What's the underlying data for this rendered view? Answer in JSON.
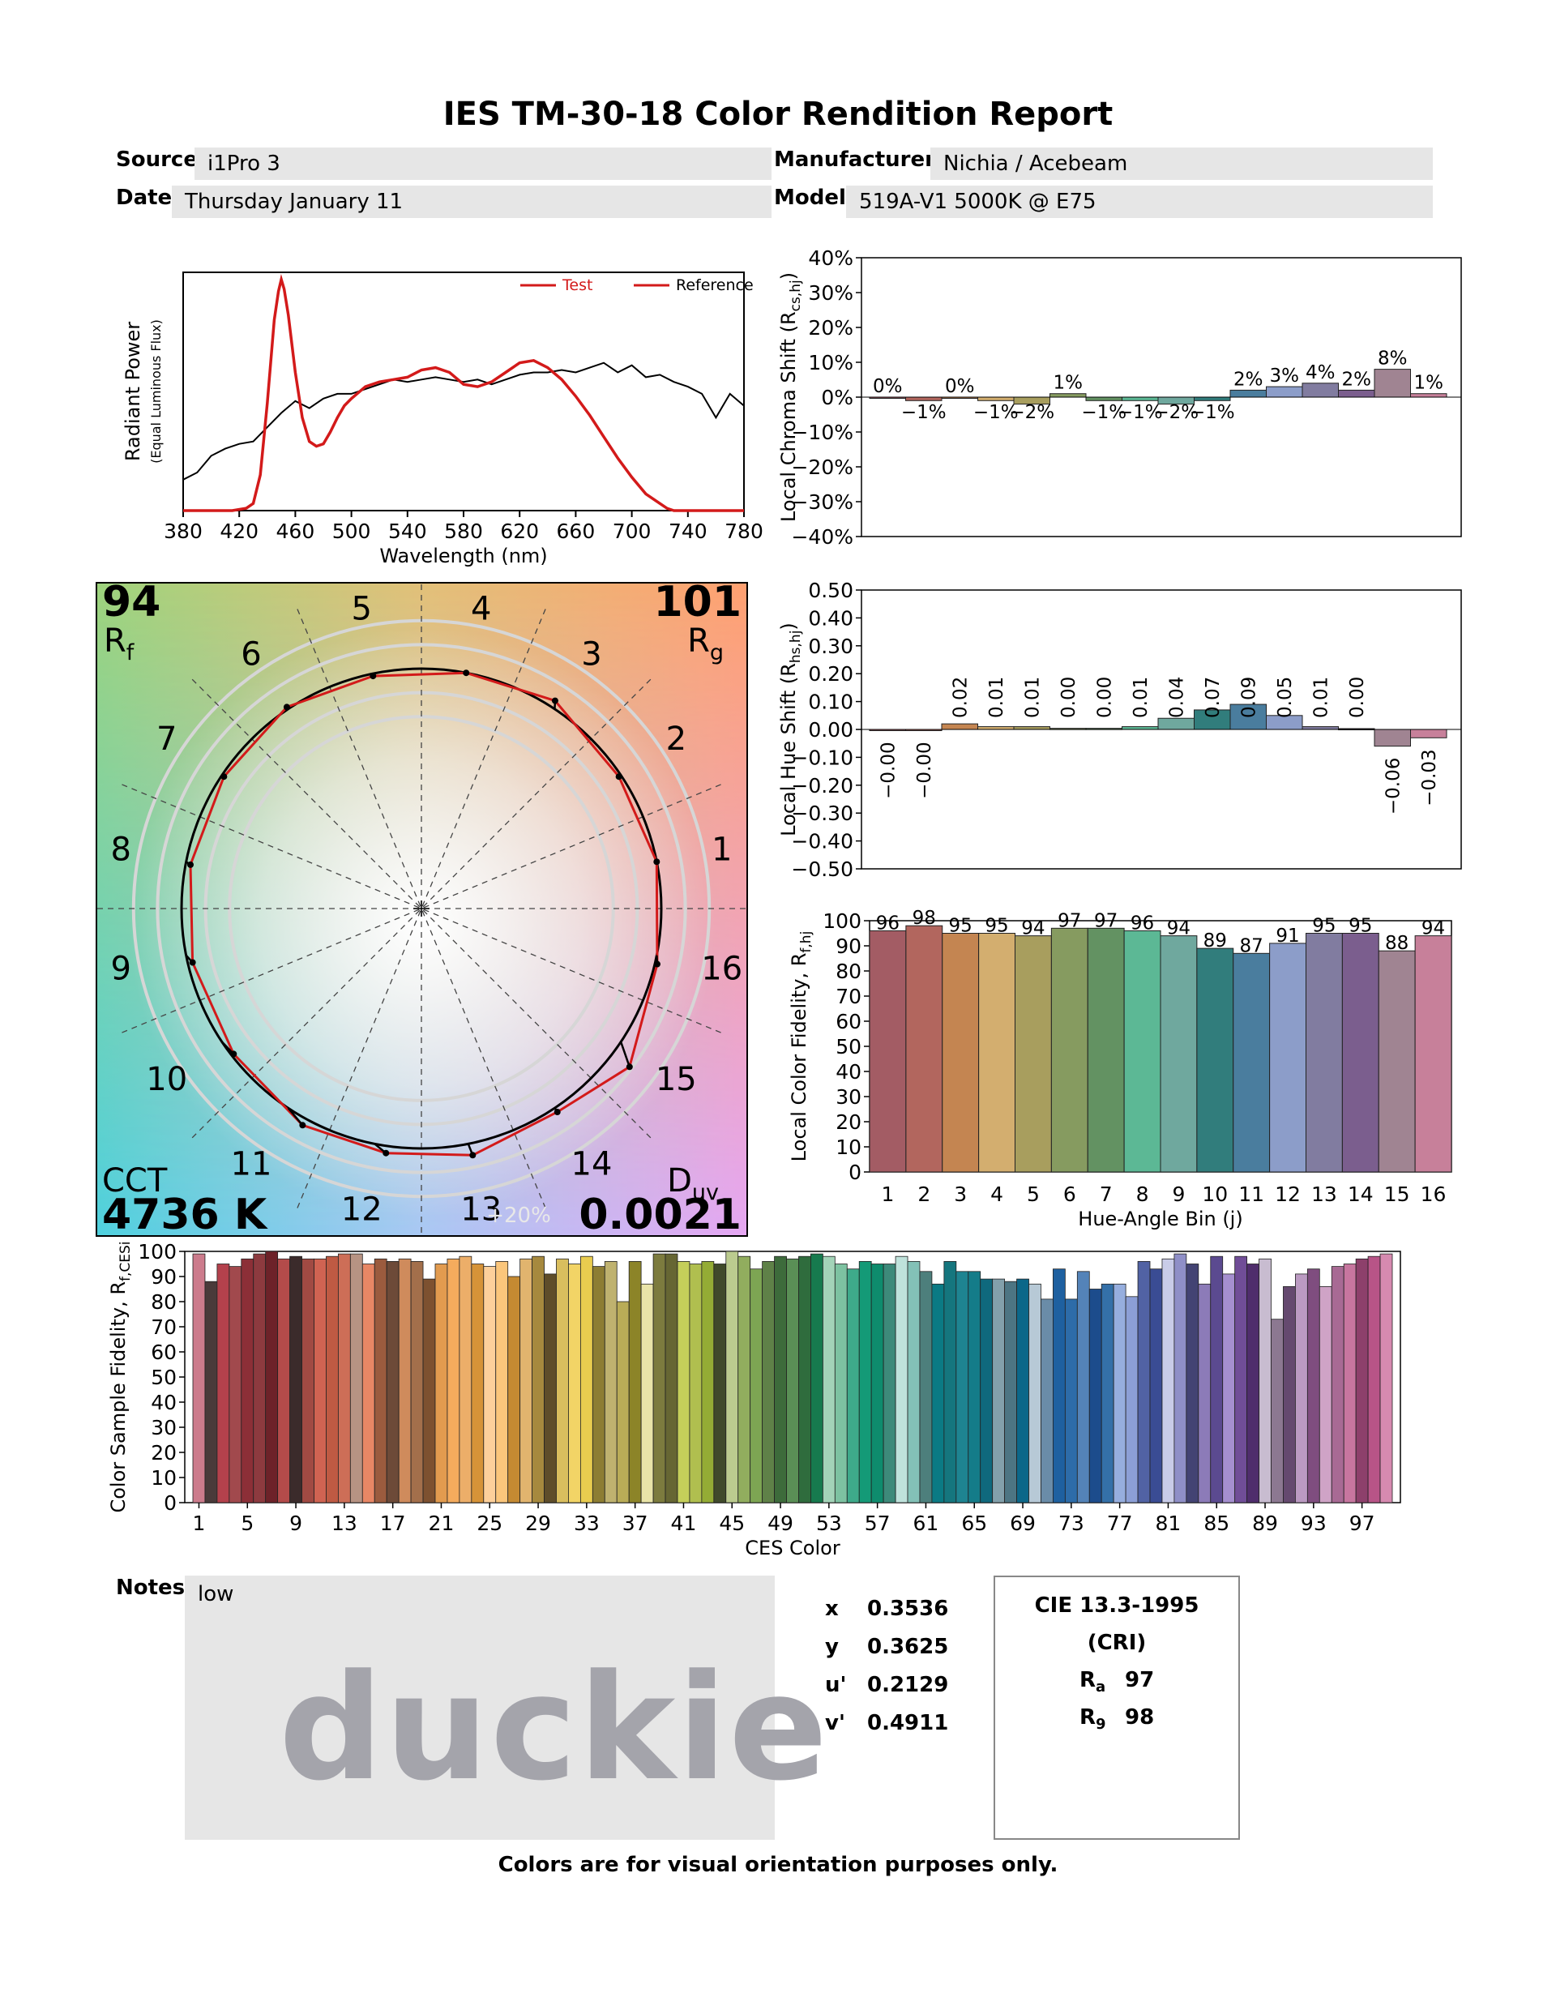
{
  "report": {
    "title": "IES TM-30-18 Color Rendition Report",
    "source_label": "Source:",
    "source": "i1Pro 3",
    "manufacturer_label": "Manufacturer:",
    "manufacturer": "Nichia / Acebeam",
    "date_label": "Date:",
    "date": "Thursday January 11",
    "model_label": "Model:",
    "model": "519A-V1 5000K @ E75",
    "notes_label": "Notes:",
    "notes": "low",
    "watermark": "duckie",
    "footer": "Colors are for visual orientation purposes only."
  },
  "chromaticity": [
    {
      "label": "x",
      "value": "0.3536"
    },
    {
      "label": "y",
      "value": "0.3625"
    },
    {
      "label": "u'",
      "value": "0.2129"
    },
    {
      "label": "v'",
      "value": "0.4911"
    }
  ],
  "cri": {
    "title_line1": "CIE 13.3-1995",
    "title_line2": "(CRI)",
    "ra_label": "R",
    "ra_sub": "a",
    "ra_value": "97",
    "r9_label": "R",
    "r9_sub": "9",
    "r9_value": "98"
  },
  "bin_colors": [
    "#a35c64",
    "#b2665e",
    "#c48551",
    "#d3ae6f",
    "#a89e5e",
    "#869b60",
    "#639262",
    "#5cb895",
    "#6fa89e",
    "#317d7c",
    "#4a7d9e",
    "#8c9dc9",
    "#817ca0",
    "#7b5e8e",
    "#a08492",
    "#c7809a"
  ],
  "chart_data": [
    {
      "id": "spectrum",
      "type": "line",
      "xlabel": "Wavelength (nm)",
      "ylabel": "Radiant Power",
      "ylabel2": "(Equal Luminous Flux)",
      "xlim": [
        380,
        780
      ],
      "ylim": [
        0,
        1
      ],
      "xticks": [
        380,
        420,
        460,
        500,
        540,
        580,
        620,
        660,
        700,
        740,
        780
      ],
      "legend": "top-right",
      "series": [
        {
          "name": "Test",
          "color": "#d31a1a",
          "x": [
            380,
            400,
            415,
            425,
            430,
            435,
            440,
            445,
            448,
            450,
            452,
            455,
            460,
            465,
            470,
            475,
            480,
            485,
            490,
            495,
            500,
            510,
            520,
            530,
            540,
            550,
            560,
            570,
            580,
            590,
            600,
            610,
            620,
            630,
            640,
            650,
            660,
            670,
            680,
            690,
            700,
            710,
            720,
            725,
            730,
            740,
            760,
            780
          ],
          "y": [
            0,
            0,
            0,
            0.01,
            0.03,
            0.15,
            0.45,
            0.8,
            0.92,
            0.97,
            0.93,
            0.82,
            0.58,
            0.39,
            0.29,
            0.27,
            0.28,
            0.33,
            0.39,
            0.44,
            0.47,
            0.52,
            0.54,
            0.55,
            0.56,
            0.59,
            0.6,
            0.58,
            0.53,
            0.52,
            0.54,
            0.58,
            0.62,
            0.63,
            0.6,
            0.55,
            0.48,
            0.4,
            0.31,
            0.22,
            0.14,
            0.07,
            0.03,
            0.01,
            0,
            0,
            0,
            0
          ]
        },
        {
          "name": "Reference",
          "color": "#000000",
          "x": [
            380,
            390,
            400,
            410,
            420,
            430,
            440,
            450,
            460,
            470,
            480,
            490,
            500,
            510,
            520,
            530,
            540,
            550,
            560,
            570,
            580,
            590,
            600,
            610,
            620,
            630,
            640,
            650,
            660,
            670,
            680,
            690,
            700,
            710,
            720,
            730,
            740,
            750,
            760,
            770,
            780
          ],
          "y": [
            0.13,
            0.16,
            0.23,
            0.26,
            0.28,
            0.29,
            0.35,
            0.41,
            0.46,
            0.43,
            0.47,
            0.49,
            0.49,
            0.51,
            0.53,
            0.55,
            0.54,
            0.55,
            0.56,
            0.55,
            0.54,
            0.55,
            0.53,
            0.55,
            0.57,
            0.58,
            0.58,
            0.59,
            0.58,
            0.6,
            0.62,
            0.58,
            0.61,
            0.56,
            0.57,
            0.54,
            0.52,
            0.49,
            0.39,
            0.49,
            0.44
          ]
        }
      ]
    },
    {
      "id": "chroma-shift",
      "type": "bar",
      "ylabel": "Local Chroma Shift (R",
      "ylabel_sub": "cs,hj",
      "ylabel_end": ")",
      "ylim": [
        -40,
        40
      ],
      "yticks": [
        "40%",
        "30%",
        "20%",
        "10%",
        "0%",
        "−10%",
        "−20%",
        "−30%",
        "−40%"
      ],
      "categories": [
        1,
        2,
        3,
        4,
        5,
        6,
        7,
        8,
        9,
        10,
        11,
        12,
        13,
        14,
        15,
        16
      ],
      "values": [
        0,
        -1,
        0,
        -1,
        -2,
        1,
        -1,
        -1,
        -2,
        -1,
        2,
        3,
        4,
        2,
        8,
        1
      ],
      "labels": [
        "0%",
        "−1%",
        "0%",
        "−1%",
        "−2%",
        "1%",
        "−1%",
        "−1%",
        "−2%",
        "−1%",
        "2%",
        "3%",
        "4%",
        "2%",
        "8%",
        "1%"
      ]
    },
    {
      "id": "hue-shift",
      "type": "bar",
      "ylabel": "Local Hue Shift (R",
      "ylabel_sub": "hs,hj",
      "ylabel_end": ")",
      "ylim": [
        -0.5,
        0.5
      ],
      "yticks": [
        "0.50",
        "0.40",
        "0.30",
        "0.20",
        "0.10",
        "0.00",
        "−0.10",
        "−0.20",
        "−0.30",
        "−0.40",
        "−0.50"
      ],
      "categories": [
        1,
        2,
        3,
        4,
        5,
        6,
        7,
        8,
        9,
        10,
        11,
        12,
        13,
        14,
        15,
        16
      ],
      "values": [
        -0.004,
        -0.004,
        0.02,
        0.01,
        0.01,
        0.004,
        0.004,
        0.01,
        0.04,
        0.07,
        0.09,
        0.05,
        0.01,
        0.003,
        -0.06,
        -0.03
      ],
      "labels": [
        "−0.00",
        "−0.00",
        "0.02",
        "0.01",
        "0.01",
        "0.00",
        "0.00",
        "0.01",
        "0.04",
        "0.07",
        "0.09",
        "0.05",
        "0.01",
        "0.00",
        "−0.06",
        "−0.03"
      ]
    },
    {
      "id": "local-fidelity",
      "type": "bar",
      "ylabel": "Local Color Fidelity, R",
      "ylabel_sub": "f,hj",
      "xlabel": "Hue-Angle Bin (j)",
      "ylim": [
        0,
        100
      ],
      "yticks": [
        0,
        10,
        20,
        30,
        40,
        50,
        60,
        70,
        80,
        90,
        100
      ],
      "categories": [
        1,
        2,
        3,
        4,
        5,
        6,
        7,
        8,
        9,
        10,
        11,
        12,
        13,
        14,
        15,
        16
      ],
      "values": [
        96,
        98,
        95,
        95,
        94,
        97,
        97,
        96,
        94,
        89,
        87,
        91,
        95,
        95,
        88,
        94
      ]
    },
    {
      "id": "ces-fidelity",
      "type": "bar",
      "ylabel": "Color Sample Fidelity, R",
      "ylabel_sub": "f,CESi",
      "xlabel": "CES Color",
      "ylim": [
        0,
        100
      ],
      "yticks": [
        0,
        10,
        20,
        30,
        40,
        50,
        60,
        70,
        80,
        90,
        100
      ],
      "xticks": [
        1,
        5,
        9,
        13,
        17,
        21,
        25,
        29,
        33,
        37,
        41,
        45,
        49,
        53,
        57,
        61,
        65,
        69,
        73,
        77,
        81,
        85,
        89,
        93,
        97
      ],
      "values": [
        99,
        88,
        95,
        94,
        97,
        99,
        100,
        97,
        98,
        97,
        97,
        98,
        99,
        99,
        95,
        97,
        96,
        97,
        96,
        89,
        95,
        97,
        98,
        95,
        94,
        96,
        90,
        97,
        98,
        91,
        97,
        95,
        98,
        94,
        96,
        80,
        96,
        87,
        99,
        99,
        96,
        95,
        96,
        95,
        100,
        98,
        93,
        96,
        98,
        97,
        98,
        99,
        98,
        95,
        93,
        96,
        95,
        95,
        98,
        96,
        92,
        87,
        96,
        92,
        92,
        89,
        89,
        88,
        89,
        87,
        81,
        93,
        81,
        92,
        85,
        87,
        87,
        82,
        96,
        93,
        97,
        99,
        95,
        87,
        98,
        91,
        98,
        95,
        97,
        73,
        86,
        91,
        93,
        86,
        94,
        95,
        97,
        98,
        99
      ],
      "colors": [
        "#cc7b8c",
        "#4a3a3a",
        "#b4414c",
        "#a1494d",
        "#8c2f37",
        "#8d3a3f",
        "#6d2229",
        "#b44b4a",
        "#3b2b2b",
        "#a14a43",
        "#d06352",
        "#bf5a43",
        "#cd6e57",
        "#b79383",
        "#e88765",
        "#9b5b3e",
        "#6d4a38",
        "#cf8b5c",
        "#a36f4b",
        "#7d5130",
        "#e29b4f",
        "#f4ab5d",
        "#ecae69",
        "#d69338",
        "#fdd09b",
        "#fbc67b",
        "#c58a32",
        "#e1b46e",
        "#a6893e",
        "#5e4d2a",
        "#d9be5e",
        "#f2d466",
        "#e9cc4f",
        "#8d7d33",
        "#bfb26f",
        "#b9ac57",
        "#8c8428",
        "#e9e4a8",
        "#7c7b3e",
        "#666633",
        "#c5cf5a",
        "#b0bf4f",
        "#94ac35",
        "#404a2b",
        "#bbcb8f",
        "#91ad5e",
        "#7da553",
        "#5f8148",
        "#3d6b3b",
        "#5a8f56",
        "#2f6c3d",
        "#167a4e",
        "#a3d3b8",
        "#7dc2a1",
        "#3eaa8a",
        "#149a77",
        "#0e8c6d",
        "#3d8a7a",
        "#bfe2db",
        "#83c1b7",
        "#4d7f7c",
        "#0b7a84",
        "#15767e",
        "#1e8491",
        "#147c89",
        "#0f697d",
        "#83a0ab",
        "#4d7583",
        "#0c6789",
        "#b7c9d6",
        "#6a8ca8",
        "#1e60a0",
        "#2d6ca9",
        "#5483b8",
        "#1c4c8c",
        "#3470a8",
        "#96aede",
        "#8c9fd6",
        "#5162a4",
        "#3a4c94",
        "#c9cce8",
        "#8f8fc7",
        "#434373",
        "#8c7bb8",
        "#5b4a90",
        "#a58fcf",
        "#704d97",
        "#4f2d6c",
        "#c8bcd0",
        "#8c7891",
        "#65496f",
        "#bb9ac2",
        "#7f4d7f",
        "#cfa3c6",
        "#a86a94",
        "#c7769f",
        "#8d406b",
        "#b85487",
        "#d68ab0"
      ]
    },
    {
      "id": "cvg",
      "type": "scatter",
      "rf_value": "94",
      "rf_label": "R",
      "rf_sub": "f",
      "rg_value": "101",
      "rg_label": "R",
      "rg_sub": "g",
      "cct_label": "CCT",
      "cct_value": "4736 K",
      "duv_label": "D",
      "duv_sub": "uv",
      "duv_value": "0.0021",
      "ring_label": "+20%",
      "bin_labels": [
        "1",
        "2",
        "3",
        "4",
        "5",
        "6",
        "7",
        "8",
        "9",
        "10",
        "11",
        "12",
        "13",
        "14",
        "15",
        "16"
      ],
      "reference_radius": 1.0,
      "test_radius": [
        1.0,
        0.99,
        1.03,
        1.0,
        0.99,
        1.01,
        0.99,
        0.98,
        0.98,
        0.99,
        1.03,
        1.03,
        1.05,
        1.02,
        1.09,
        1.01
      ],
      "test_hue_shift_deg": [
        0,
        0,
        1,
        0.5,
        0.5,
        0,
        0,
        0.5,
        2,
        4,
        5,
        3,
        0.5,
        0,
        -3.5,
        -2
      ]
    }
  ]
}
